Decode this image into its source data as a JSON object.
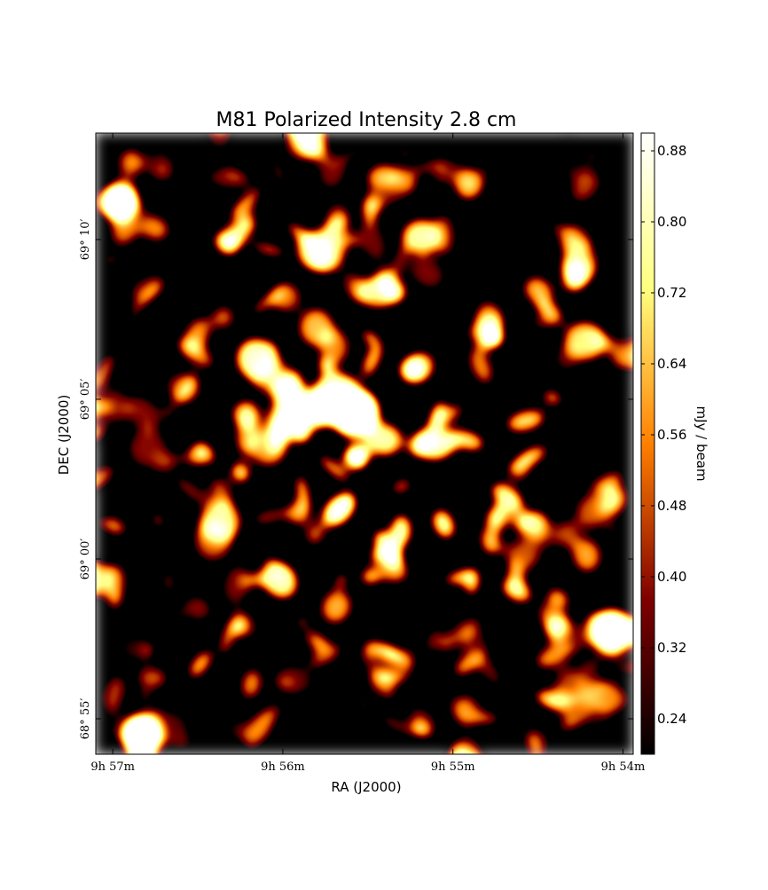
{
  "chart_data": {
    "type": "image",
    "title": "M81 Polarized Intensity 2.8 cm",
    "xlabel": "RA (J2000)",
    "ylabel": "DEC (J2000)",
    "colorbar_label": "mJy / beam",
    "colormap": "afmhot",
    "xlim": [
      597.1,
      593.94
    ],
    "xticks": [
      {
        "value": 597,
        "label": "9h 57m"
      },
      {
        "value": 596,
        "label": "9h 56m"
      },
      {
        "value": 595,
        "label": "9h 55m"
      },
      {
        "value": 594,
        "label": "9h 54m"
      }
    ],
    "ylim": [
      4133.89,
      4153.33
    ],
    "yticks": [
      {
        "value": 4135,
        "label": "68° 55′"
      },
      {
        "value": 4140,
        "label": "69° 00′"
      },
      {
        "value": 4145,
        "label": "69° 05′"
      },
      {
        "value": 4150,
        "label": "69° 10′"
      }
    ],
    "clim": [
      0.2,
      0.9
    ],
    "cticks": [
      0.24,
      0.32,
      {
        "value": 0.4,
        "label": "0.40"
      },
      0.48,
      0.56,
      0.64,
      0.72,
      {
        "value": 0.8,
        "label": "0.80"
      },
      0.88
    ]
  }
}
